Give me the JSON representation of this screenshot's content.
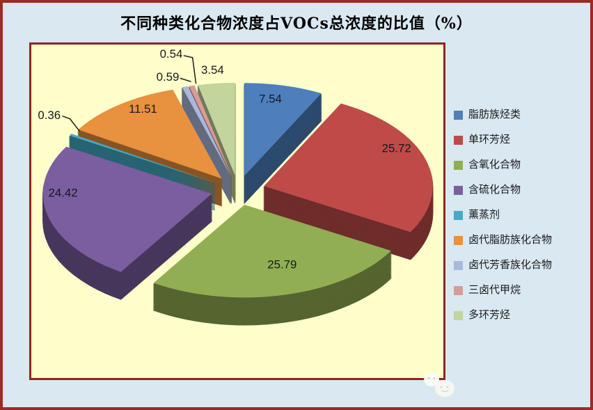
{
  "chart_data": {
    "type": "pie",
    "projection": "3d-exploded",
    "title": "不同种类化合物浓度占VOCs总浓度的比值（%）",
    "value_unit": "percent",
    "legend_position": "right",
    "data_labels": "outside-for-small-slices",
    "slices": [
      {
        "label": "脂肪族烃类",
        "value": 7.54,
        "color": "#4E7FBC"
      },
      {
        "label": "单环芳烃",
        "value": 25.72,
        "color": "#BE4B48"
      },
      {
        "label": "含氧化合物",
        "value": 25.79,
        "color": "#92AE53"
      },
      {
        "label": "含硫化合物",
        "value": 24.42,
        "color": "#7A5E9F"
      },
      {
        "label": "薰蒸剂",
        "value": 0.36,
        "color": "#45AAC4"
      },
      {
        "label": "卤代脂肪族化合物",
        "value": 11.51,
        "color": "#E8913E"
      },
      {
        "label": "卤代芳香族化合物",
        "value": 0.59,
        "color": "#A9B9DC"
      },
      {
        "label": "三卤代甲烷",
        "value": 0.54,
        "color": "#D99B98"
      },
      {
        "label": "多环芳烃",
        "value": 3.54,
        "color": "#C3D49C"
      }
    ]
  },
  "colors": {
    "outer_background": "#D9E8F1",
    "plot_background": "#FFFFCB",
    "frame_border": "#9C2B23",
    "plot_border": "#8C2620",
    "title_text": "#000000",
    "label_text": "#17171F"
  }
}
